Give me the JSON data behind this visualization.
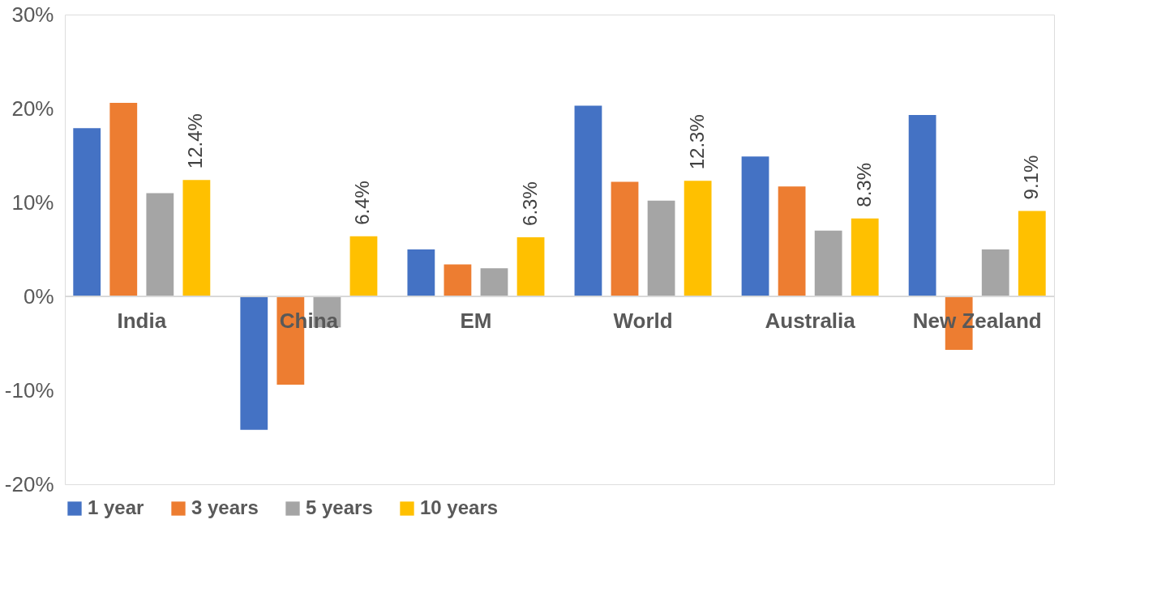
{
  "chart_data": {
    "type": "bar",
    "categories": [
      "India",
      "China",
      "EM",
      "World",
      "Australia",
      "New Zealand"
    ],
    "series": [
      {
        "name": "1 year",
        "color": "#4472c4",
        "values": [
          17.9,
          -14.2,
          5.0,
          20.3,
          14.9,
          19.3
        ]
      },
      {
        "name": "3 years",
        "color": "#ed7d31",
        "values": [
          20.6,
          -9.4,
          3.4,
          12.2,
          11.7,
          -5.7
        ]
      },
      {
        "name": "5 years",
        "color": "#a5a5a5",
        "values": [
          11.0,
          -3.3,
          3.0,
          10.2,
          7.0,
          5.0
        ]
      },
      {
        "name": "10 years",
        "color": "#ffc000",
        "values": [
          12.4,
          6.4,
          6.3,
          12.3,
          8.3,
          9.1
        ],
        "value_labels": [
          "12.4%",
          "6.4%",
          "6.3%",
          "12.3%",
          "8.3%",
          "9.1%"
        ]
      }
    ],
    "ylim": [
      -20,
      30
    ],
    "yticks": [
      {
        "value": -20,
        "label": "-20%"
      },
      {
        "value": -10,
        "label": "-10%"
      },
      {
        "value": 0,
        "label": "0%"
      },
      {
        "value": 10,
        "label": "10%"
      },
      {
        "value": 20,
        "label": "20%"
      },
      {
        "value": 30,
        "label": "30%"
      }
    ],
    "grid": false,
    "legend": "bottom"
  }
}
